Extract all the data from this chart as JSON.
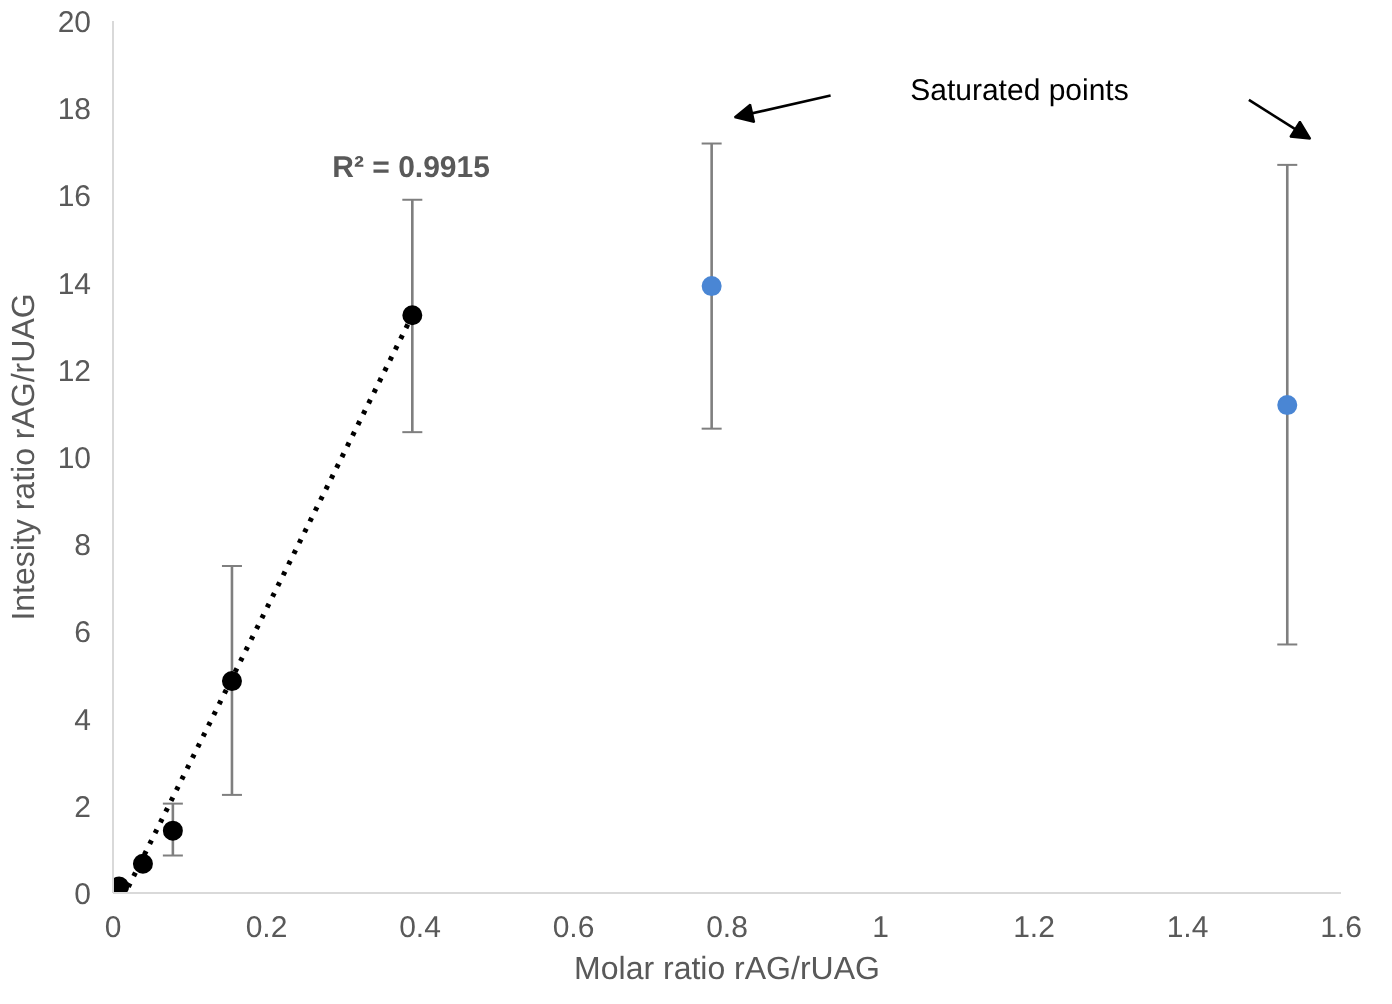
{
  "chart_data": {
    "type": "scatter",
    "xlabel": "Molar ratio rAG/rUAG",
    "ylabel": "Intesity ratio rAG/rUAG",
    "xlim": [
      0,
      1.6
    ],
    "xticks": [
      0,
      0.2,
      0.4,
      0.6,
      0.8,
      1,
      1.2,
      1.4,
      1.6
    ],
    "ylim": [
      0,
      20
    ],
    "yticks": [
      0,
      2,
      4,
      6,
      8,
      10,
      12,
      14,
      16,
      18,
      20
    ],
    "grid": false,
    "marker": "circle",
    "series": [
      {
        "color": "#000000",
        "x": [
          0.008,
          0.039,
          0.078,
          0.155,
          0.39
        ],
        "values": [
          0.15,
          0.67,
          1.43,
          4.86,
          13.25
        ],
        "errors": [
          null,
          null,
          [
            0.86,
            2.05
          ],
          [
            2.25,
            7.5
          ],
          [
            10.57,
            15.9
          ]
        ]
      },
      {
        "color": "#4a86d4",
        "x": [
          0.78,
          1.53
        ],
        "values": [
          13.92,
          11.19
        ],
        "errors": [
          [
            10.65,
            17.19
          ],
          [
            5.7,
            16.7
          ]
        ]
      },
      {
        "type": "line",
        "color": "#000000",
        "line_style": "dotted",
        "marker": "none",
        "x": [
          0.02,
          0.39
        ],
        "values": [
          0.14,
          13.25
        ]
      }
    ],
    "annotations": [
      "R² = 0.9915",
      "Saturated points"
    ]
  }
}
